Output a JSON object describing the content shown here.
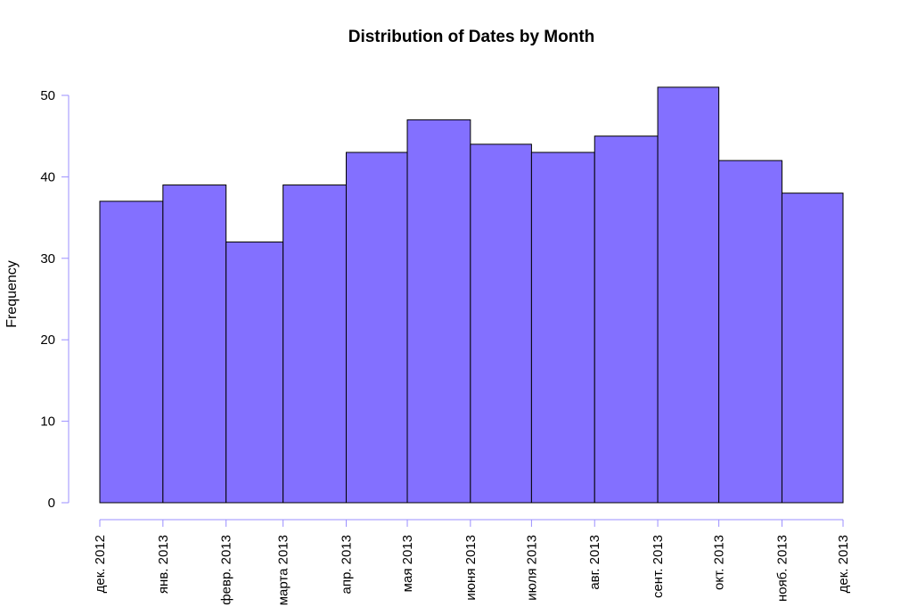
{
  "chart_data": {
    "type": "bar",
    "title": "Distribution of Dates by Month",
    "xlabel": "",
    "ylabel": "Frequency",
    "ylim": [
      0,
      52
    ],
    "y_ticks": [
      0,
      10,
      20,
      30,
      40,
      50
    ],
    "x_tick_labels": [
      "дек. 2012",
      "янв. 2013",
      "февр. 2013",
      "марта 2013",
      "апр. 2013",
      "мая 2013",
      "июня 2013",
      "июля 2013",
      "авг. 2013",
      "сент. 2013",
      "окт. 2013",
      "нояб. 2013",
      "дек. 2013"
    ],
    "bin_edges": [
      "2012-12-01",
      "2013-01-01",
      "2013-02-01",
      "2013-03-01",
      "2013-04-01",
      "2013-05-01",
      "2013-06-01",
      "2013-07-01",
      "2013-08-01",
      "2013-09-01",
      "2013-10-01",
      "2013-11-01",
      "2013-12-01"
    ],
    "values": [
      37,
      39,
      32,
      39,
      43,
      47,
      44,
      43,
      45,
      51,
      42,
      38
    ],
    "bar_color": "#8370ff",
    "bar_stroke": "#000000",
    "axis_color": "#9b8fff",
    "grid": false
  }
}
